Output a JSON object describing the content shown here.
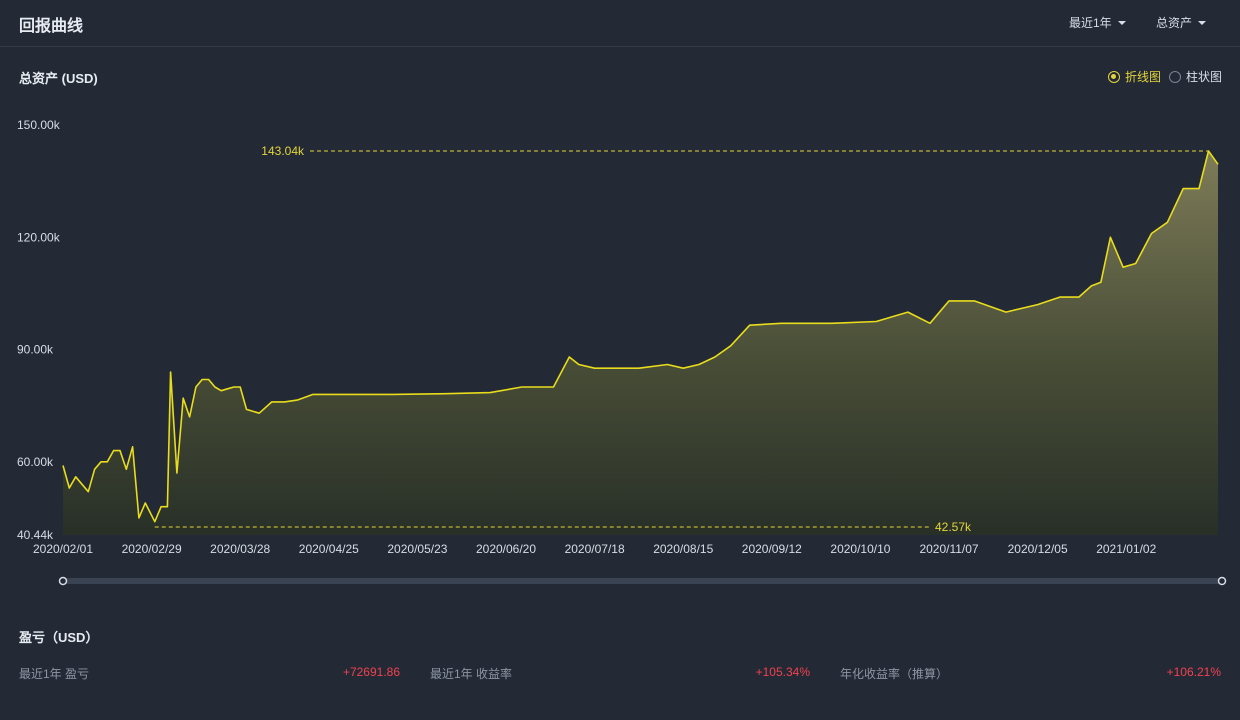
{
  "header": {
    "title": "回报曲线",
    "period_select": "最近1年",
    "metric_select": "总资产"
  },
  "chart_section": {
    "title": "总资产 (USD)",
    "toggle": [
      {
        "label": "折线图",
        "selected": true
      },
      {
        "label": "柱状图",
        "selected": false
      }
    ]
  },
  "chart_data": {
    "type": "area",
    "title": "总资产 (USD)",
    "y_ticks": [
      "150.00k",
      "120.00k",
      "90.00k",
      "60.00k",
      "40.44k"
    ],
    "x_ticks": [
      "2020/02/01",
      "2020/02/29",
      "2020/03/28",
      "2020/04/25",
      "2020/05/23",
      "2020/06/20",
      "2020/07/18",
      "2020/08/15",
      "2020/09/12",
      "2020/10/10",
      "2020/11/07",
      "2020/12/05",
      "2021/01/02"
    ],
    "ylim": [
      40440,
      150000
    ],
    "x_range": [
      "2020/02/01",
      "2021/01/31"
    ],
    "max_label": "143.04k",
    "min_label": "42.57k",
    "max_value": 143040,
    "min_value": 42570,
    "line_color": "#e8dc1c",
    "series": [
      {
        "x": [
          "2020/02/01",
          "2020/02/03",
          "2020/02/05",
          "2020/02/07",
          "2020/02/09",
          "2020/02/11",
          "2020/02/13",
          "2020/02/15",
          "2020/02/17",
          "2020/02/19",
          "2020/02/21",
          "2020/02/23",
          "2020/02/25",
          "2020/02/27",
          "2020/03/01",
          "2020/03/03",
          "2020/03/05",
          "2020/03/06",
          "2020/03/08",
          "2020/03/10",
          "2020/03/12",
          "2020/03/14",
          "2020/03/16",
          "2020/03/18",
          "2020/03/20",
          "2020/03/22",
          "2020/03/24",
          "2020/03/26",
          "2020/03/28",
          "2020/03/30",
          "2020/04/03",
          "2020/04/07",
          "2020/04/11",
          "2020/04/15",
          "2020/04/20",
          "2020/05/01",
          "2020/05/15",
          "2020/06/01",
          "2020/06/15",
          "2020/06/25",
          "2020/07/05",
          "2020/07/10",
          "2020/07/13",
          "2020/07/18",
          "2020/08/01",
          "2020/08/10",
          "2020/08/15",
          "2020/08/20",
          "2020/08/25",
          "2020/08/30",
          "2020/09/05",
          "2020/09/15",
          "2020/10/01",
          "2020/10/15",
          "2020/10/25",
          "2020/11/01",
          "2020/11/07",
          "2020/11/15",
          "2020/11/25",
          "2020/12/05",
          "2020/12/12",
          "2020/12/18",
          "2020/12/22",
          "2020/12/25",
          "2020/12/28",
          "2021/01/01",
          "2021/01/05",
          "2021/01/10",
          "2021/01/15",
          "2021/01/20",
          "2021/01/25",
          "2021/01/28",
          "2021/01/31"
        ],
        "y": [
          59000,
          53000,
          56000,
          54000,
          52000,
          58000,
          60000,
          60000,
          63000,
          63000,
          58000,
          64000,
          45000,
          49000,
          44000,
          48000,
          48000,
          84000,
          57000,
          77000,
          72000,
          80000,
          82000,
          82000,
          80000,
          79000,
          79500,
          80000,
          80000,
          74000,
          73000,
          76000,
          76000,
          76500,
          78000,
          78000,
          78000,
          78200,
          78500,
          80000,
          80000,
          88000,
          86000,
          85000,
          85000,
          86000,
          85000,
          86000,
          88000,
          91000,
          96500,
          97000,
          97000,
          97500,
          100000,
          97000,
          103000,
          103000,
          100000,
          102000,
          104000,
          104000,
          107000,
          108000,
          120000,
          112000,
          113000,
          121000,
          124000,
          133000,
          133000,
          143040,
          139500
        ]
      }
    ]
  },
  "pnl": {
    "title": "盈亏（USD）",
    "items": [
      {
        "label": "最近1年 盈亏",
        "value": "+72691.86"
      },
      {
        "label": "最近1年 收益率",
        "value": "+105.34%"
      },
      {
        "label": "年化收益率（推算）",
        "value": "+106.21%"
      }
    ]
  }
}
